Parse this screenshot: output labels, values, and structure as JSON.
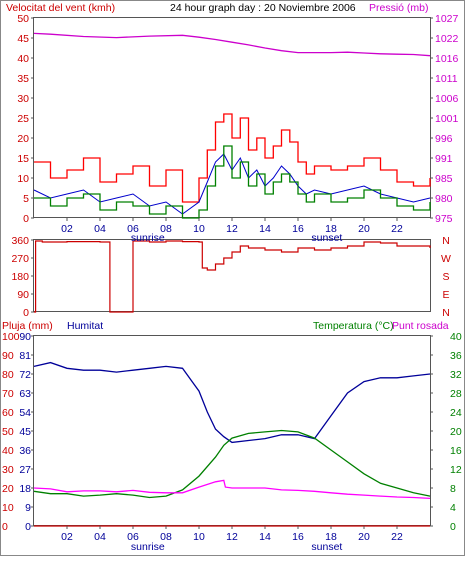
{
  "header": {
    "wind_label": "Velocitat del vent (kmh)",
    "title": "24 hour graph day : 20 Noviembre 2006",
    "pressure_label": "Pressió (mb)"
  },
  "colors": {
    "wind": "#ff0000",
    "wind_avg": "#008000",
    "wind_dir": "#cc0000",
    "humidity": "#000099",
    "temperature": "#008000",
    "dewpoint": "#ff00ff",
    "rain": "#cc0000",
    "pressure": "#cc00cc",
    "frame": "#555555"
  },
  "chart_data": [
    {
      "type": "line",
      "name": "wind-pressure",
      "x_ticks": [
        "02",
        "04",
        "06",
        "08",
        "10",
        "12",
        "14",
        "16",
        "18",
        "20",
        "22"
      ],
      "sun_labels": [
        {
          "label": "sunrise",
          "hour": 6.9
        },
        {
          "label": "sunset",
          "hour": 17.75
        }
      ],
      "xlim": [
        0,
        24
      ],
      "y_left": {
        "label": "Velocitat del vent (kmh)",
        "ylim": [
          0,
          50
        ],
        "ticks": [
          0,
          5,
          10,
          15,
          20,
          25,
          30,
          35,
          40,
          45,
          50
        ]
      },
      "y_right": {
        "label": "Pressió (mb)",
        "ylim": [
          975,
          1027
        ],
        "ticks": [
          975,
          980,
          985,
          991,
          996,
          1001,
          1006,
          1011,
          1016,
          1022,
          1027
        ]
      },
      "series": [
        {
          "key": "pressure",
          "axis": "right",
          "style": "line",
          "x": [
            0,
            1,
            3,
            5,
            7,
            9,
            10,
            11,
            12,
            13,
            14,
            15,
            16,
            17,
            18,
            19,
            20,
            21,
            22,
            23,
            24
          ],
          "values": [
            1023,
            1022.8,
            1022.2,
            1021.9,
            1022.3,
            1022.5,
            1022.0,
            1021.4,
            1020.7,
            1020.0,
            1019.2,
            1018.5,
            1018.0,
            1018.0,
            1018.0,
            1018.1,
            1017.9,
            1017.7,
            1017.6,
            1017.5,
            1017.2
          ]
        },
        {
          "key": "wind_gust",
          "axis": "left",
          "style": "step",
          "x": [
            0,
            1,
            2,
            3,
            4,
            5,
            6,
            7,
            8,
            9,
            10,
            10.5,
            11,
            11.5,
            12,
            12.5,
            13,
            13.5,
            14,
            14.5,
            15,
            15.5,
            16,
            16.5,
            17,
            18,
            19,
            20,
            21,
            22,
            23,
            24
          ],
          "values": [
            14,
            10,
            12,
            15,
            9,
            11,
            13,
            8,
            12,
            4,
            10,
            17,
            24,
            26,
            20,
            25,
            17,
            20,
            15,
            18,
            22,
            19,
            14,
            11,
            13,
            12,
            13,
            15,
            12,
            9,
            8,
            10
          ]
        },
        {
          "key": "wind_speed",
          "axis": "left",
          "style": "line",
          "x": [
            0,
            1,
            2,
            3,
            4,
            5,
            6,
            7,
            8,
            9,
            10,
            10.5,
            11,
            11.5,
            12,
            12.5,
            13,
            13.5,
            14,
            14.5,
            15,
            15.5,
            16,
            16.5,
            17,
            18,
            19,
            20,
            21,
            22,
            23,
            24
          ],
          "values": [
            7,
            5,
            6,
            7,
            4,
            5,
            6,
            3,
            4,
            1,
            4,
            9,
            14,
            16,
            12,
            15,
            10,
            12,
            8,
            10,
            13,
            11,
            8,
            6,
            7,
            6,
            7,
            8,
            6,
            5,
            4,
            5
          ]
        },
        {
          "key": "wind_avg",
          "axis": "left",
          "style": "step",
          "x": [
            0,
            1,
            2,
            3,
            4,
            5,
            6,
            7,
            8,
            9,
            10,
            10.5,
            11,
            11.5,
            12,
            12.5,
            13,
            13.5,
            14,
            14.5,
            15,
            15.5,
            16,
            16.5,
            17,
            18,
            19,
            20,
            21,
            22,
            23,
            24
          ],
          "values": [
            5,
            3,
            5,
            6,
            2,
            4,
            3,
            1,
            3,
            0,
            2,
            8,
            13,
            18,
            10,
            14,
            8,
            11,
            6,
            9,
            11,
            9,
            6,
            4,
            6,
            4,
            5,
            7,
            5,
            3,
            2,
            4
          ]
        }
      ]
    },
    {
      "type": "line",
      "name": "wind-direction",
      "xlim": [
        0,
        24
      ],
      "y_left": {
        "label": "",
        "ylim": [
          0,
          360
        ],
        "ticks": [
          0,
          90,
          180,
          270,
          360
        ]
      },
      "y_right": {
        "label": "",
        "tick_labels": [
          "N",
          "E",
          "S",
          "W",
          "N"
        ]
      },
      "series": [
        {
          "key": "wind_dir",
          "axis": "left",
          "style": "step",
          "x": [
            0,
            0.1,
            0.5,
            2,
            4,
            4.6,
            5.9,
            6,
            7,
            8,
            9,
            10,
            10.2,
            10.5,
            11,
            11.5,
            12,
            12.5,
            13,
            14,
            15,
            16,
            17,
            18,
            19,
            20,
            21,
            22,
            23,
            24
          ],
          "values": [
            0,
            355,
            350,
            352,
            350,
            0,
            0,
            355,
            350,
            355,
            352,
            350,
            220,
            210,
            240,
            270,
            300,
            330,
            320,
            310,
            300,
            320,
            310,
            320,
            330,
            350,
            345,
            330,
            330,
            320
          ]
        }
      ]
    },
    {
      "type": "line",
      "name": "temperature-humidity",
      "x_ticks": [
        "02",
        "04",
        "06",
        "08",
        "10",
        "12",
        "14",
        "16",
        "18",
        "20",
        "22"
      ],
      "sun_labels": [
        {
          "label": "sunrise",
          "hour": 6.9
        },
        {
          "label": "sunset",
          "hour": 17.75
        }
      ],
      "xlim": [
        0,
        24
      ],
      "header_labels": {
        "rain": "Pluja (mm)",
        "humidity": "Humitat",
        "temperature": "Temperatura (°C)",
        "dewpoint": "Punt rosada"
      },
      "y_left_outer": {
        "label": "Pluja (mm)",
        "ylim": [
          0,
          100
        ],
        "ticks": [
          0,
          10,
          20,
          30,
          40,
          50,
          60,
          70,
          80,
          90,
          100
        ]
      },
      "y_left_inner": {
        "label": "Humitat",
        "ylim": [
          0,
          100
        ],
        "tick_labels": [
          "0",
          "9",
          "18",
          "27",
          "36",
          "45",
          "54",
          "63",
          "72",
          "81",
          "90"
        ]
      },
      "y_right": {
        "label": "Temperatura (°C)",
        "ylim": [
          0,
          40
        ],
        "ticks": [
          0,
          4,
          8,
          12,
          16,
          20,
          24,
          28,
          32,
          36,
          40
        ]
      },
      "series": [
        {
          "key": "humidity",
          "axis": "left",
          "x": [
            0,
            1,
            2,
            3,
            4,
            5,
            6,
            7,
            8,
            9,
            10,
            10.5,
            11,
            11.5,
            12,
            13,
            14,
            15,
            16,
            17,
            18,
            19,
            20,
            21,
            22,
            23,
            24
          ],
          "values": [
            84,
            86,
            83,
            82,
            82,
            81,
            82,
            83,
            84,
            83,
            71,
            60,
            51,
            47,
            44,
            45,
            46,
            48,
            48,
            46,
            58,
            70,
            76,
            78,
            78,
            79,
            80
          ]
        },
        {
          "key": "temperature",
          "axis": "right",
          "x": [
            0,
            1,
            2,
            3,
            4,
            5,
            6,
            7,
            8,
            9,
            10,
            11,
            11.5,
            12,
            13,
            14,
            15,
            16,
            17,
            18,
            19,
            20,
            21,
            22,
            23,
            24
          ],
          "values": [
            7.3,
            6.8,
            6.8,
            6.3,
            6.5,
            6.8,
            6.5,
            6.0,
            6.3,
            7.6,
            10.5,
            14.5,
            17.0,
            18.5,
            19.5,
            19.8,
            20.1,
            19.8,
            18.5,
            16.0,
            13.5,
            11.0,
            9.0,
            8.0,
            7.0,
            6.3
          ]
        },
        {
          "key": "dewpoint",
          "axis": "right",
          "x": [
            0,
            1,
            2,
            3,
            4,
            5,
            6,
            7,
            8,
            9,
            10,
            11,
            11.5,
            11.6,
            12,
            13,
            14,
            15,
            16,
            17,
            18,
            19,
            20,
            21,
            22,
            23,
            24
          ],
          "values": [
            8.0,
            7.8,
            7.2,
            7.4,
            7.4,
            7.2,
            7.5,
            7.1,
            7.0,
            7.0,
            8.2,
            9.3,
            9.6,
            8.2,
            8.0,
            8.0,
            8.0,
            7.6,
            7.5,
            7.3,
            7.0,
            6.7,
            6.5,
            6.3,
            6.1,
            6.0,
            5.8
          ]
        },
        {
          "key": "rain",
          "axis": "left",
          "x": [
            0,
            24
          ],
          "values": [
            0,
            0
          ]
        }
      ]
    }
  ]
}
